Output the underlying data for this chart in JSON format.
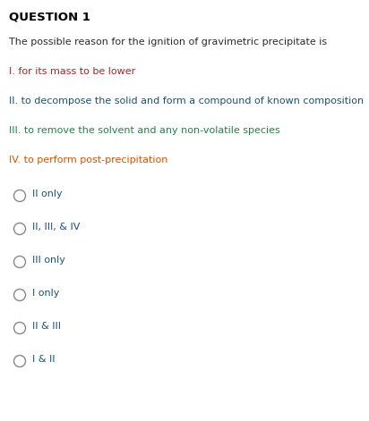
{
  "title": "QUESTION 1",
  "title_color": "#000000",
  "title_fontsize": 9.5,
  "background_color": "#ffffff",
  "question_text": "The possible reason for the ignition of gravimetric precipitate is",
  "question_color": "#2c2c2c",
  "question_fontsize": 8.0,
  "statements": [
    {
      "label": "I.",
      "text": " for its mass to be lower",
      "color": "#b22222"
    },
    {
      "label": "II.",
      "text": " to decompose the solid and form a compound of known composition",
      "color": "#1a5276"
    },
    {
      "label": "III.",
      "text": " to remove the solvent and any non-volatile species",
      "color": "#1e8449"
    },
    {
      "label": "IV.",
      "text": " to perform post-precipitation",
      "color": "#d35400"
    }
  ],
  "options": [
    "II only",
    "II, III, & IV",
    "III only",
    "I only",
    "II & III",
    "I & II"
  ],
  "option_color": "#1a5276",
  "option_fontsize": 8.0,
  "label_fontsize": 8.0,
  "figsize": [
    4.12,
    4.71
  ],
  "dpi": 100
}
